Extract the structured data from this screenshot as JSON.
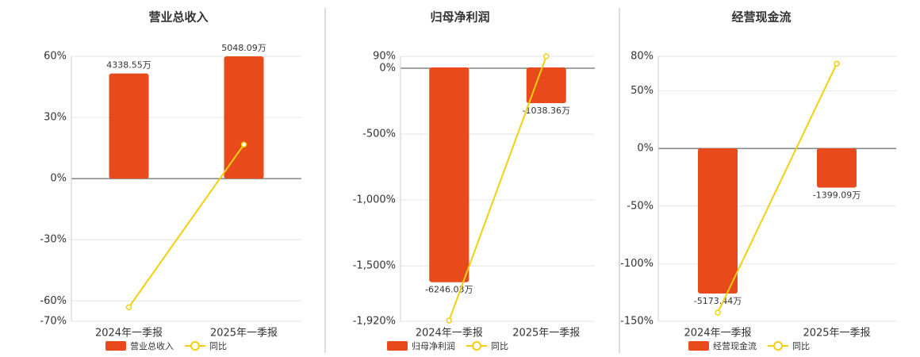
{
  "chart_data": [
    {
      "type": "bar",
      "title": "营业总收入",
      "categories": [
        "2024年一季报",
        "2025年一季报"
      ],
      "series": [
        {
          "name": "营业总收入",
          "type": "bar",
          "axis": "y2",
          "color": "#e84a1b",
          "values": [
            4338.55,
            5048.09
          ],
          "value_labels": [
            "4338.55万",
            "5048.09万"
          ]
        },
        {
          "name": "同比",
          "type": "line",
          "color": "#f2cf0f",
          "values": [
            -63.1,
            16.7
          ]
        }
      ],
      "ylim": [
        -70,
        60
      ],
      "yticks": [
        {
          "value": 60,
          "label": "60%"
        },
        {
          "value": 30,
          "label": "30%"
        },
        {
          "value": 0,
          "label": "0%"
        },
        {
          "value": -30,
          "label": "-30%"
        },
        {
          "value": -60,
          "label": "-60%"
        },
        {
          "value": -70,
          "label": "-70%"
        }
      ],
      "y2lim": [
        -5889.44,
        5048.09
      ],
      "grid": true,
      "legend": "bottom"
    },
    {
      "type": "bar",
      "title": "归母净利润",
      "categories": [
        "2024年一季报",
        "2025年一季报"
      ],
      "series": [
        {
          "name": "归母净利润",
          "type": "bar",
          "axis": "y2",
          "color": "#e84a1b",
          "values": [
            -6246.03,
            -1038.36
          ],
          "value_labels": [
            "-6246.03万",
            "-1038.36万"
          ]
        },
        {
          "name": "同比",
          "type": "line",
          "color": "#f2cf0f",
          "values": [
            -1914,
            90
          ]
        }
      ],
      "ylim": [
        -1920,
        90
      ],
      "yticks": [
        {
          "value": 90,
          "label": "90%"
        },
        {
          "value": 0,
          "label": "0%"
        },
        {
          "value": -500,
          "label": "-500%"
        },
        {
          "value": -1000,
          "label": "-1,000%"
        },
        {
          "value": -1500,
          "label": "-1,500%"
        },
        {
          "value": -1920,
          "label": "-1,920%"
        }
      ],
      "y2lim": [
        -7384,
        324
      ],
      "grid": true,
      "legend": "bottom"
    },
    {
      "type": "bar",
      "title": "经营现金流",
      "categories": [
        "2024年一季报",
        "2025年一季报"
      ],
      "series": [
        {
          "name": "经营现金流",
          "type": "bar",
          "axis": "y2",
          "color": "#e84a1b",
          "values": [
            -5173.44,
            -1399.09
          ],
          "value_labels": [
            "-5173.44万",
            "-1399.09万"
          ]
        },
        {
          "name": "同比",
          "type": "line",
          "color": "#f2cf0f",
          "values": [
            -142.5,
            73.6
          ]
        }
      ],
      "ylim": [
        -150,
        80
      ],
      "yticks": [
        {
          "value": 80,
          "label": "80%"
        },
        {
          "value": 50,
          "label": "50%"
        },
        {
          "value": 0,
          "label": "0%"
        },
        {
          "value": -50,
          "label": "-50%"
        },
        {
          "value": -100,
          "label": "-100%"
        },
        {
          "value": -150,
          "label": "-150%"
        }
      ],
      "y2lim": [
        -6163,
        3279
      ],
      "grid": true,
      "legend": "bottom"
    }
  ]
}
